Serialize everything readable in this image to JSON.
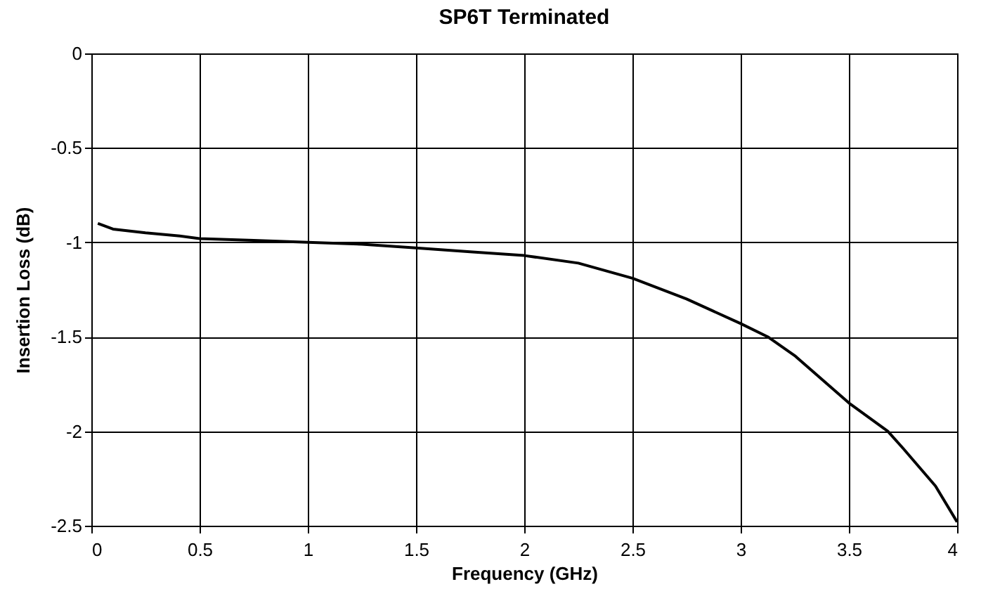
{
  "chart_data": {
    "type": "line",
    "title": "SP6T Terminated",
    "xlabel": "Frequency (GHz)",
    "ylabel": "Insertion Loss (dB)",
    "x": [
      0.03,
      0.1,
      0.25,
      0.4,
      0.5,
      0.75,
      1,
      1.25,
      1.5,
      1.75,
      2,
      2.25,
      2.5,
      2.75,
      3,
      3.125,
      3.25,
      3.5,
      3.68,
      3.75,
      3.9,
      4
    ],
    "series": [
      {
        "color": "#000000",
        "values": [
          -0.9,
          -0.93,
          -0.95,
          -0.965,
          -0.98,
          -0.99,
          -1.0,
          -1.01,
          -1.03,
          -1.05,
          -1.07,
          -1.11,
          -1.19,
          -1.3,
          -1.43,
          -1.5,
          -1.6,
          -1.85,
          -2.0,
          -2.09,
          -2.29,
          -2.48
        ]
      }
    ],
    "xlim": [
      0,
      4
    ],
    "xticks": [
      0,
      0.5,
      1,
      1.5,
      2,
      2.5,
      3,
      3.5,
      4
    ],
    "ylim": [
      -2.5,
      0
    ],
    "yticks": [
      -2.5,
      -2,
      -1.5,
      -1,
      -0.5,
      0
    ],
    "grid": true,
    "legend": false,
    "marker": "none",
    "line_style": "solid"
  }
}
